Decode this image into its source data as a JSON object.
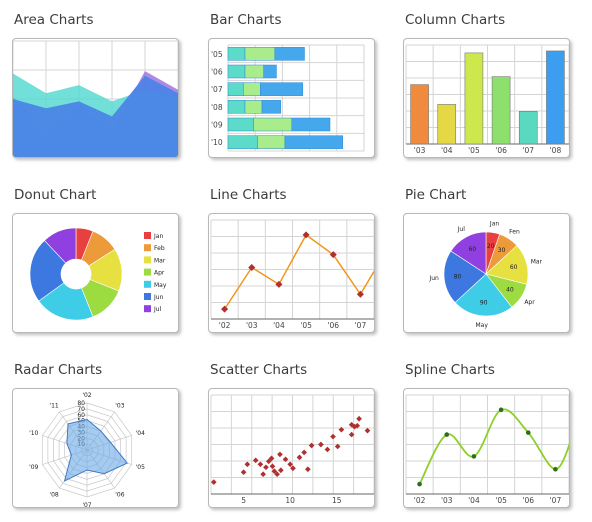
{
  "gallery": {
    "items": [
      {
        "id": "area",
        "title": "Area Charts"
      },
      {
        "id": "bar",
        "title": "Bar Charts"
      },
      {
        "id": "column",
        "title": "Column Charts"
      },
      {
        "id": "donut",
        "title": "Donut Chart"
      },
      {
        "id": "line",
        "title": "Line Charts"
      },
      {
        "id": "pie",
        "title": "Pie Chart"
      },
      {
        "id": "radar",
        "title": "Radar Charts"
      },
      {
        "id": "scatter",
        "title": "Scatter Charts"
      },
      {
        "id": "spline",
        "title": "Spline Charts"
      }
    ]
  },
  "chart_data": [
    {
      "type": "area",
      "series": [
        {
          "color": "#9b6be0",
          "values": [
            52,
            20,
            45,
            22,
            74,
            58
          ]
        },
        {
          "color": "#4fd8d0",
          "values": [
            72,
            55,
            62,
            48,
            58,
            52
          ]
        },
        {
          "color": "#4a82e6",
          "values": [
            50,
            42,
            48,
            35,
            70,
            55
          ]
        }
      ],
      "ylim": [
        0,
        100
      ]
    },
    {
      "type": "bar",
      "stacked": true,
      "orientation": "horizontal",
      "categories": [
        "'05",
        "'06",
        "'07",
        "'08",
        "'09",
        "'10"
      ],
      "series": [
        {
          "color": "#5cdcc8",
          "values": [
            20,
            20,
            18,
            20,
            30,
            35
          ]
        },
        {
          "color": "#a8ec8c",
          "values": [
            35,
            22,
            20,
            20,
            45,
            32
          ]
        },
        {
          "color": "#46a8ec",
          "values": [
            35,
            15,
            50,
            22,
            45,
            68
          ]
        }
      ],
      "xlim": [
        0,
        160
      ]
    },
    {
      "type": "bar",
      "categories": [
        "'03",
        "'04",
        "'05",
        "'06",
        "'07",
        "'08"
      ],
      "values": [
        60,
        40,
        92,
        68,
        33,
        94
      ],
      "colors": [
        "#f08a3c",
        "#e4d844",
        "#cce84c",
        "#8ee06c",
        "#5ad8c0",
        "#3c9ef0"
      ],
      "ylim": [
        0,
        100
      ]
    },
    {
      "type": "pie",
      "donut": true,
      "categories": [
        "Jan",
        "Feb",
        "Mar",
        "Apr",
        "May",
        "Jun",
        "Jul"
      ],
      "values": [
        6,
        10,
        15,
        13,
        21,
        23,
        12
      ],
      "colors": [
        "#e84040",
        "#ec9a3a",
        "#e6e040",
        "#9cdc40",
        "#3ecce6",
        "#3c78e0",
        "#9040e0"
      ],
      "legend": "right"
    },
    {
      "type": "line",
      "x": [
        "'02",
        "'03",
        "'04",
        "'05",
        "'06",
        "'07"
      ],
      "y": [
        10,
        52,
        35,
        85,
        65,
        25
      ],
      "color": "#f0961e",
      "marker_color": "#b03030",
      "ylim": [
        0,
        100
      ]
    },
    {
      "type": "pie",
      "categories": [
        "Jan",
        "Fen",
        "Mar",
        "Apr",
        "May",
        "Jun",
        "Jul"
      ],
      "values": [
        20,
        30,
        60,
        40,
        90,
        80,
        60
      ],
      "colors": [
        "#e84040",
        "#ec9a3a",
        "#e6e040",
        "#9cdc40",
        "#3ecce6",
        "#3c78e0",
        "#9040e0"
      ]
    },
    {
      "type": "radar",
      "categories": [
        "'02",
        "'03",
        "'04",
        "'05",
        "'06",
        "'07",
        "'08",
        "'09",
        "'10",
        "'11"
      ],
      "values": [
        52,
        40,
        42,
        72,
        50,
        34,
        65,
        28,
        36,
        55
      ],
      "ticks": [
        "10",
        "20",
        "30",
        "40",
        "50",
        "60",
        "70",
        "80"
      ],
      "rlim": [
        0,
        80
      ]
    },
    {
      "type": "scatter",
      "xticks": [
        "5",
        "10",
        "15"
      ],
      "xlim": [
        1.5,
        19
      ],
      "ylim": [
        0,
        100
      ],
      "points": [
        [
          1.8,
          12
        ],
        [
          5,
          22
        ],
        [
          5.4,
          30
        ],
        [
          6.3,
          34
        ],
        [
          6.8,
          30
        ],
        [
          7.1,
          20
        ],
        [
          7.4,
          27
        ],
        [
          7.7,
          33
        ],
        [
          8,
          36
        ],
        [
          8.1,
          28
        ],
        [
          8.3,
          23
        ],
        [
          8.6,
          20
        ],
        [
          8.9,
          40
        ],
        [
          9,
          24
        ],
        [
          9.5,
          35
        ],
        [
          10,
          30
        ],
        [
          10.3,
          26
        ],
        [
          11,
          37
        ],
        [
          11.5,
          42
        ],
        [
          11.9,
          25
        ],
        [
          12.3,
          49
        ],
        [
          13.3,
          50
        ],
        [
          14,
          45
        ],
        [
          14.6,
          58
        ],
        [
          15.1,
          48
        ],
        [
          15.5,
          65
        ],
        [
          16.6,
          60
        ],
        [
          16.9,
          68
        ],
        [
          17.2,
          69
        ],
        [
          17.4,
          76
        ],
        [
          18.3,
          64
        ],
        [
          16.6,
          70
        ]
      ],
      "color": "#b03030"
    },
    {
      "type": "line",
      "smooth": true,
      "x": [
        "'02",
        "'03",
        "'04",
        "'05",
        "'06",
        "'07"
      ],
      "y": [
        10,
        60,
        38,
        85,
        62,
        25
      ],
      "extra_end": 60,
      "color": "#8ecf28",
      "marker_color": "#2c6e1c",
      "ylim": [
        0,
        100
      ]
    }
  ]
}
